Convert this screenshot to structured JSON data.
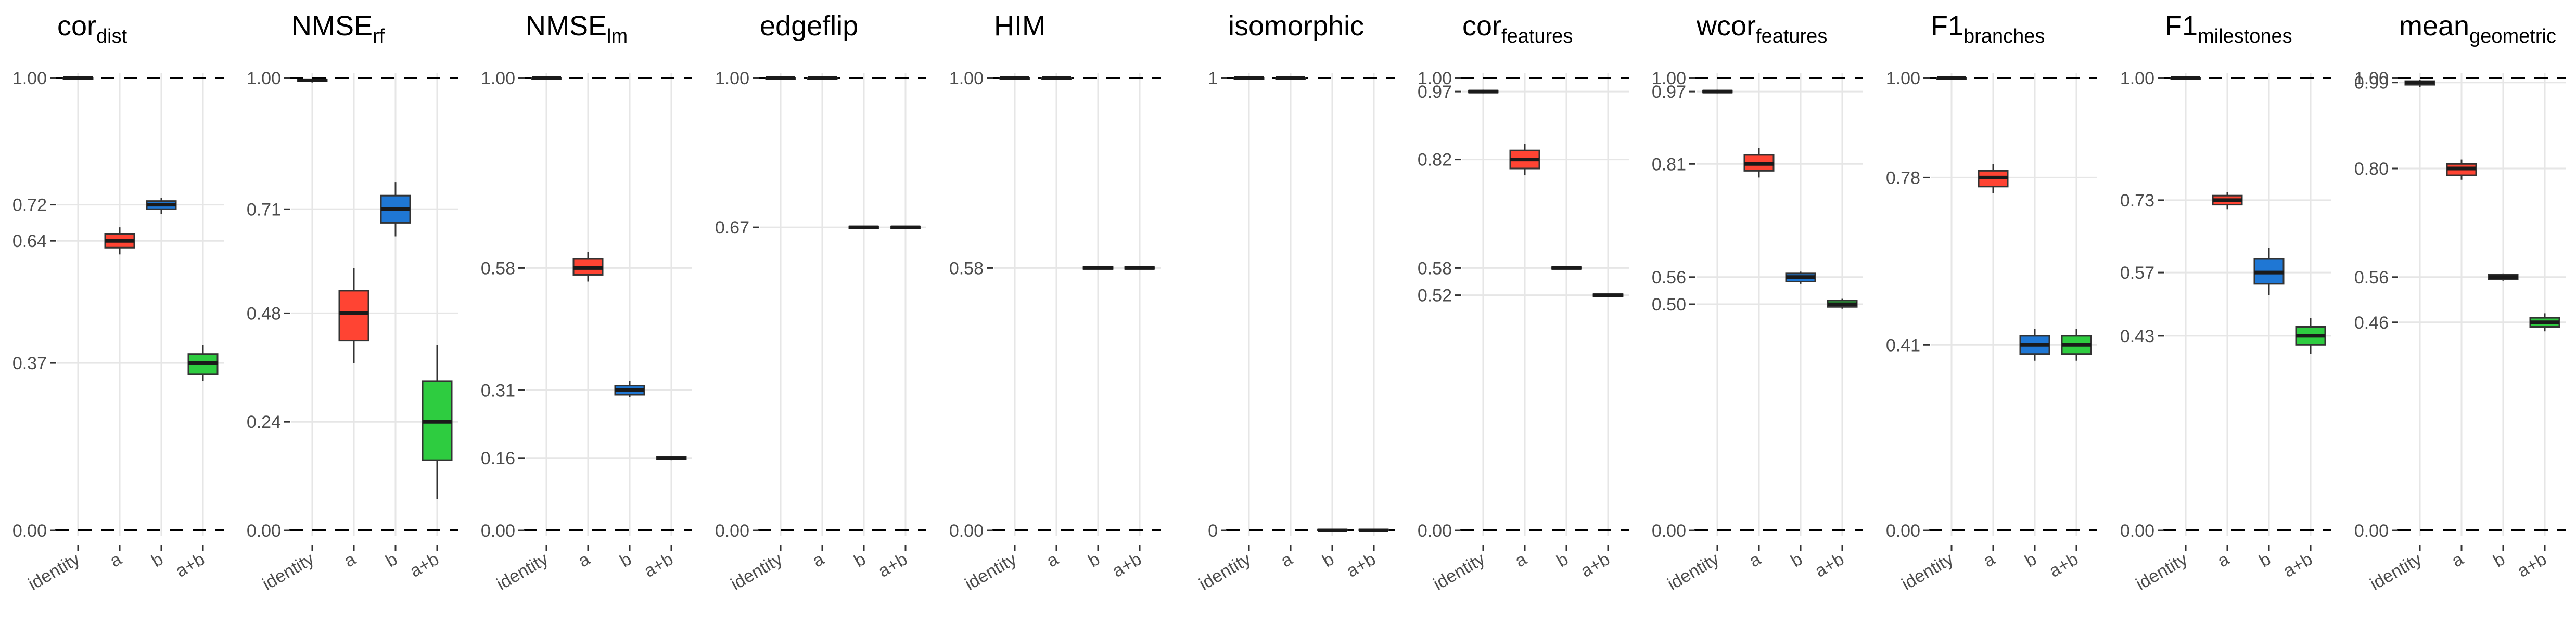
{
  "chart_data": [
    {
      "type": "box",
      "title_main": "cor",
      "title_sub": "dist",
      "categories": [
        "identity",
        "a",
        "b",
        "a+b"
      ],
      "ylim": [
        0,
        1
      ],
      "yticks": [
        0.0,
        0.37,
        0.64,
        0.72,
        1.0
      ],
      "ytick_labels": [
        "0.00",
        "0.37",
        "0.64",
        "0.72",
        "1.00"
      ],
      "boxes": [
        {
          "category": "identity",
          "median": 1.0,
          "q1": 0.999,
          "q3": 1.0,
          "whisker_low": 0.998,
          "whisker_high": 1.0,
          "color": "#333333"
        },
        {
          "category": "a",
          "median": 0.64,
          "q1": 0.625,
          "q3": 0.655,
          "whisker_low": 0.61,
          "whisker_high": 0.67,
          "color": "#ff4433"
        },
        {
          "category": "b",
          "median": 0.72,
          "q1": 0.71,
          "q3": 0.728,
          "whisker_low": 0.7,
          "whisker_high": 0.735,
          "color": "#1f77d4"
        },
        {
          "category": "a+b",
          "median": 0.37,
          "q1": 0.345,
          "q3": 0.39,
          "whisker_low": 0.33,
          "whisker_high": 0.41,
          "color": "#2ecc40"
        }
      ]
    },
    {
      "type": "box",
      "title_main": "NMSE",
      "title_sub": "rf",
      "categories": [
        "identity",
        "a",
        "b",
        "a+b"
      ],
      "ylim": [
        0,
        1
      ],
      "yticks": [
        0.0,
        0.24,
        0.48,
        0.71,
        1.0
      ],
      "ytick_labels": [
        "0.00",
        "0.24",
        "0.48",
        "0.71",
        "1.00"
      ],
      "boxes": [
        {
          "category": "identity",
          "median": 0.995,
          "q1": 0.993,
          "q3": 0.997,
          "whisker_low": 0.99,
          "whisker_high": 0.998,
          "color": "#333333"
        },
        {
          "category": "a",
          "median": 0.48,
          "q1": 0.42,
          "q3": 0.53,
          "whisker_low": 0.37,
          "whisker_high": 0.58,
          "color": "#ff4433"
        },
        {
          "category": "b",
          "median": 0.71,
          "q1": 0.68,
          "q3": 0.74,
          "whisker_low": 0.65,
          "whisker_high": 0.77,
          "color": "#1f77d4"
        },
        {
          "category": "a+b",
          "median": 0.24,
          "q1": 0.155,
          "q3": 0.33,
          "whisker_low": 0.07,
          "whisker_high": 0.41,
          "color": "#2ecc40"
        }
      ]
    },
    {
      "type": "box",
      "title_main": "NMSE",
      "title_sub": "lm",
      "categories": [
        "identity",
        "a",
        "b",
        "a+b"
      ],
      "ylim": [
        0,
        1
      ],
      "yticks": [
        0.0,
        0.16,
        0.31,
        0.58,
        1.0
      ],
      "ytick_labels": [
        "0.00",
        "0.16",
        "0.31",
        "0.58",
        "1.00"
      ],
      "boxes": [
        {
          "category": "identity",
          "median": 1.0,
          "q1": 0.998,
          "q3": 1.0,
          "whisker_low": 0.997,
          "whisker_high": 1.0,
          "color": "#333333"
        },
        {
          "category": "a",
          "median": 0.58,
          "q1": 0.565,
          "q3": 0.6,
          "whisker_low": 0.55,
          "whisker_high": 0.615,
          "color": "#ff4433"
        },
        {
          "category": "b",
          "median": 0.31,
          "q1": 0.3,
          "q3": 0.32,
          "whisker_low": 0.295,
          "whisker_high": 0.33,
          "color": "#1f77d4"
        },
        {
          "category": "a+b",
          "median": 0.16,
          "q1": 0.157,
          "q3": 0.163,
          "whisker_low": 0.155,
          "whisker_high": 0.165,
          "color": "#2ecc40"
        }
      ]
    },
    {
      "type": "box",
      "title_main": "edgeflip",
      "title_sub": "",
      "categories": [
        "identity",
        "a",
        "b",
        "a+b"
      ],
      "ylim": [
        0,
        1
      ],
      "yticks": [
        0.0,
        0.67,
        1.0
      ],
      "ytick_labels": [
        "0.00",
        "0.67",
        "1.00"
      ],
      "boxes": [
        {
          "category": "identity",
          "median": 1.0,
          "q1": 0.999,
          "q3": 1.0,
          "whisker_low": 0.998,
          "whisker_high": 1.0,
          "color": "#333333"
        },
        {
          "category": "a",
          "median": 1.0,
          "q1": 0.999,
          "q3": 1.0,
          "whisker_low": 0.998,
          "whisker_high": 1.0,
          "color": "#ff4433"
        },
        {
          "category": "b",
          "median": 0.67,
          "q1": 0.668,
          "q3": 0.672,
          "whisker_low": 0.667,
          "whisker_high": 0.673,
          "color": "#1f77d4"
        },
        {
          "category": "a+b",
          "median": 0.67,
          "q1": 0.668,
          "q3": 0.672,
          "whisker_low": 0.667,
          "whisker_high": 0.673,
          "color": "#2ecc40"
        }
      ]
    },
    {
      "type": "box",
      "title_main": "HIM",
      "title_sub": "",
      "categories": [
        "identity",
        "a",
        "b",
        "a+b"
      ],
      "ylim": [
        0,
        1
      ],
      "yticks": [
        0.0,
        0.58,
        1.0
      ],
      "ytick_labels": [
        "0.00",
        "0.58",
        "1.00"
      ],
      "boxes": [
        {
          "category": "identity",
          "median": 1.0,
          "q1": 0.999,
          "q3": 1.0,
          "whisker_low": 0.998,
          "whisker_high": 1.0,
          "color": "#333333"
        },
        {
          "category": "a",
          "median": 1.0,
          "q1": 0.999,
          "q3": 1.0,
          "whisker_low": 0.998,
          "whisker_high": 1.0,
          "color": "#ff4433"
        },
        {
          "category": "b",
          "median": 0.58,
          "q1": 0.578,
          "q3": 0.582,
          "whisker_low": 0.577,
          "whisker_high": 0.583,
          "color": "#1f77d4"
        },
        {
          "category": "a+b",
          "median": 0.58,
          "q1": 0.578,
          "q3": 0.582,
          "whisker_low": 0.577,
          "whisker_high": 0.583,
          "color": "#2ecc40"
        }
      ]
    },
    {
      "type": "box",
      "title_main": "isomorphic",
      "title_sub": "",
      "categories": [
        "identity",
        "a",
        "b",
        "a+b"
      ],
      "ylim": [
        0,
        1
      ],
      "yticks": [
        0,
        1
      ],
      "ytick_labels": [
        "0",
        "1"
      ],
      "boxes": [
        {
          "category": "identity",
          "median": 1.0,
          "q1": 0.999,
          "q3": 1.0,
          "whisker_low": 0.998,
          "whisker_high": 1.0,
          "color": "#333333"
        },
        {
          "category": "a",
          "median": 1.0,
          "q1": 0.999,
          "q3": 1.0,
          "whisker_low": 0.998,
          "whisker_high": 1.0,
          "color": "#ff4433"
        },
        {
          "category": "b",
          "median": 0.0,
          "q1": 0.0,
          "q3": 0.002,
          "whisker_low": 0.0,
          "whisker_high": 0.003,
          "color": "#1f77d4"
        },
        {
          "category": "a+b",
          "median": 0.0,
          "q1": 0.0,
          "q3": 0.002,
          "whisker_low": 0.0,
          "whisker_high": 0.003,
          "color": "#2ecc40"
        }
      ]
    },
    {
      "type": "box",
      "title_main": "cor",
      "title_sub": "features",
      "categories": [
        "identity",
        "a",
        "b",
        "a+b"
      ],
      "ylim": [
        0,
        1
      ],
      "yticks": [
        0.0,
        0.52,
        0.58,
        0.82,
        0.97,
        1.0
      ],
      "ytick_labels": [
        "0.00",
        "0.52",
        "0.58",
        "0.82",
        "0.97",
        "1.00"
      ],
      "boxes": [
        {
          "category": "identity",
          "median": 0.97,
          "q1": 0.968,
          "q3": 0.972,
          "whisker_low": 0.966,
          "whisker_high": 0.974,
          "color": "#333333"
        },
        {
          "category": "a",
          "median": 0.82,
          "q1": 0.8,
          "q3": 0.84,
          "whisker_low": 0.785,
          "whisker_high": 0.855,
          "color": "#ff4433"
        },
        {
          "category": "b",
          "median": 0.58,
          "q1": 0.578,
          "q3": 0.582,
          "whisker_low": 0.577,
          "whisker_high": 0.584,
          "color": "#1f77d4"
        },
        {
          "category": "a+b",
          "median": 0.52,
          "q1": 0.518,
          "q3": 0.522,
          "whisker_low": 0.517,
          "whisker_high": 0.523,
          "color": "#2ecc40"
        }
      ]
    },
    {
      "type": "box",
      "title_main": "wcor",
      "title_sub": "features",
      "categories": [
        "identity",
        "a",
        "b",
        "a+b"
      ],
      "ylim": [
        0,
        1
      ],
      "yticks": [
        0.0,
        0.5,
        0.56,
        0.81,
        0.97,
        1.0
      ],
      "ytick_labels": [
        "0.00",
        "0.50",
        "0.56",
        "0.81",
        "0.97",
        "1.00"
      ],
      "boxes": [
        {
          "category": "identity",
          "median": 0.97,
          "q1": 0.968,
          "q3": 0.972,
          "whisker_low": 0.966,
          "whisker_high": 0.974,
          "color": "#333333"
        },
        {
          "category": "a",
          "median": 0.81,
          "q1": 0.795,
          "q3": 0.83,
          "whisker_low": 0.78,
          "whisker_high": 0.845,
          "color": "#ff4433"
        },
        {
          "category": "b",
          "median": 0.56,
          "q1": 0.55,
          "q3": 0.568,
          "whisker_low": 0.545,
          "whisker_high": 0.572,
          "color": "#1f77d4"
        },
        {
          "category": "a+b",
          "median": 0.5,
          "q1": 0.494,
          "q3": 0.508,
          "whisker_low": 0.49,
          "whisker_high": 0.512,
          "color": "#2ecc40"
        }
      ]
    },
    {
      "type": "box",
      "title_main": "F1",
      "title_sub": "branches",
      "categories": [
        "identity",
        "a",
        "b",
        "a+b"
      ],
      "ylim": [
        0,
        1
      ],
      "yticks": [
        0.0,
        0.41,
        0.78,
        1.0
      ],
      "ytick_labels": [
        "0.00",
        "0.41",
        "0.78",
        "1.00"
      ],
      "boxes": [
        {
          "category": "identity",
          "median": 1.0,
          "q1": 0.999,
          "q3": 1.0,
          "whisker_low": 0.998,
          "whisker_high": 1.0,
          "color": "#333333"
        },
        {
          "category": "a",
          "median": 0.78,
          "q1": 0.76,
          "q3": 0.795,
          "whisker_low": 0.745,
          "whisker_high": 0.81,
          "color": "#ff4433"
        },
        {
          "category": "b",
          "median": 0.41,
          "q1": 0.39,
          "q3": 0.43,
          "whisker_low": 0.375,
          "whisker_high": 0.445,
          "color": "#1f77d4"
        },
        {
          "category": "a+b",
          "median": 0.41,
          "q1": 0.39,
          "q3": 0.43,
          "whisker_low": 0.375,
          "whisker_high": 0.445,
          "color": "#2ecc40"
        }
      ]
    },
    {
      "type": "box",
      "title_main": "F1",
      "title_sub": "milestones",
      "categories": [
        "identity",
        "a",
        "b",
        "a+b"
      ],
      "ylim": [
        0,
        1
      ],
      "yticks": [
        0.0,
        0.43,
        0.57,
        0.73,
        1.0
      ],
      "ytick_labels": [
        "0.00",
        "0.43",
        "0.57",
        "0.73",
        "1.00"
      ],
      "boxes": [
        {
          "category": "identity",
          "median": 1.0,
          "q1": 0.999,
          "q3": 1.0,
          "whisker_low": 0.998,
          "whisker_high": 1.0,
          "color": "#333333"
        },
        {
          "category": "a",
          "median": 0.73,
          "q1": 0.72,
          "q3": 0.74,
          "whisker_low": 0.71,
          "whisker_high": 0.748,
          "color": "#ff4433"
        },
        {
          "category": "b",
          "median": 0.57,
          "q1": 0.545,
          "q3": 0.6,
          "whisker_low": 0.52,
          "whisker_high": 0.625,
          "color": "#1f77d4"
        },
        {
          "category": "a+b",
          "median": 0.43,
          "q1": 0.41,
          "q3": 0.45,
          "whisker_low": 0.39,
          "whisker_high": 0.47,
          "color": "#2ecc40"
        }
      ]
    },
    {
      "type": "box",
      "title_main": "mean",
      "title_sub": "geometric",
      "categories": [
        "identity",
        "a",
        "b",
        "a+b"
      ],
      "ylim": [
        0,
        1
      ],
      "yticks": [
        0.0,
        0.46,
        0.56,
        0.8,
        0.99,
        1.0
      ],
      "ytick_labels": [
        "0.00",
        "0.46",
        "0.56",
        "0.80",
        "0.99",
        "1.00"
      ],
      "boxes": [
        {
          "category": "identity",
          "median": 0.99,
          "q1": 0.985,
          "q3": 0.993,
          "whisker_low": 0.98,
          "whisker_high": 0.996,
          "color": "#333333"
        },
        {
          "category": "a",
          "median": 0.8,
          "q1": 0.785,
          "q3": 0.81,
          "whisker_low": 0.775,
          "whisker_high": 0.82,
          "color": "#ff4433"
        },
        {
          "category": "b",
          "median": 0.56,
          "q1": 0.555,
          "q3": 0.565,
          "whisker_low": 0.552,
          "whisker_high": 0.568,
          "color": "#1f77d4"
        },
        {
          "category": "a+b",
          "median": 0.46,
          "q1": 0.45,
          "q3": 0.47,
          "whisker_low": 0.44,
          "whisker_high": 0.48,
          "color": "#2ecc40"
        }
      ]
    }
  ]
}
